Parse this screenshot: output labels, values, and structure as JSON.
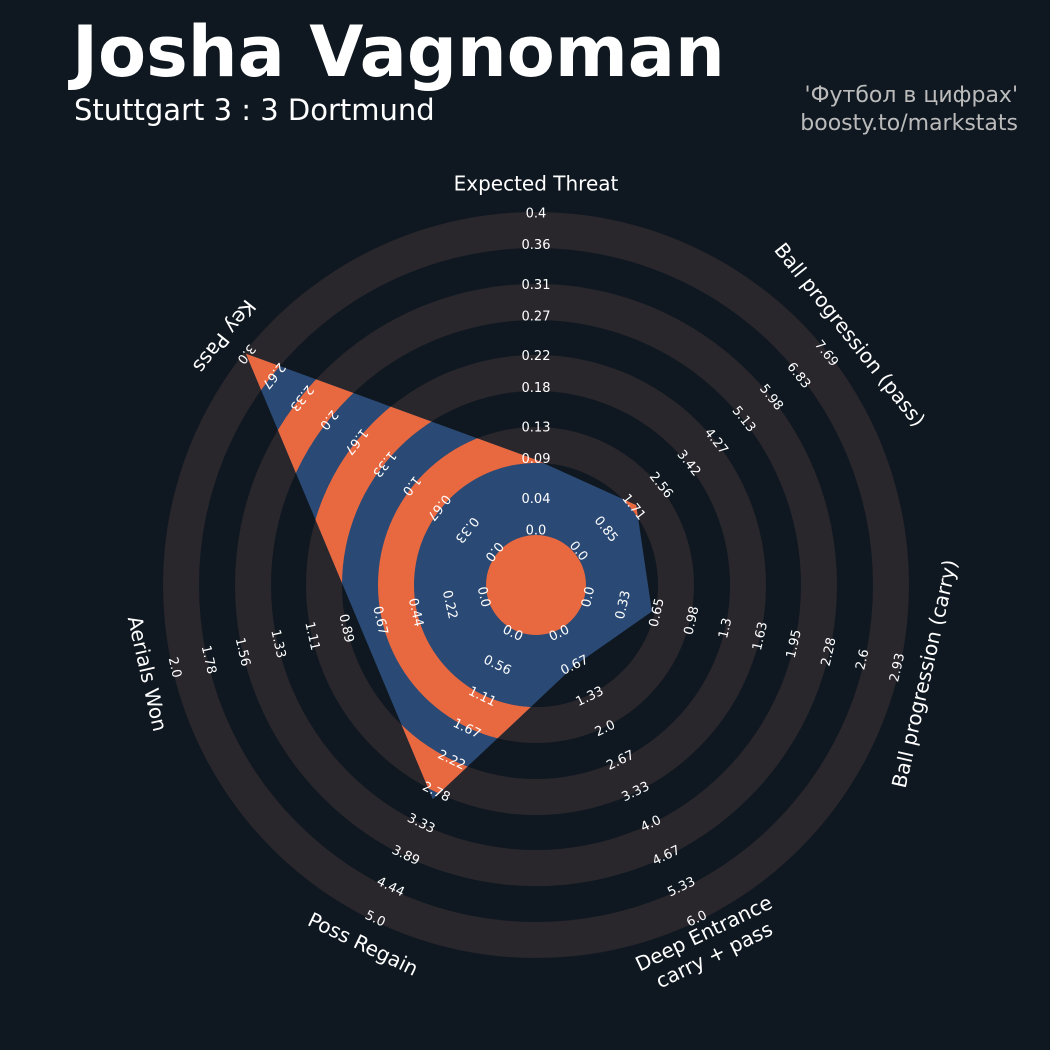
{
  "chart_data": {
    "type": "radar",
    "title": "Josha Vagnoman",
    "subtitle": "Stuttgart 3 : 3 Dortmund",
    "credits": [
      "'Футбол в цифрах'",
      "boosty.to/markstats"
    ],
    "params": [
      [
        "Expected Threat"
      ],
      [
        "Ball progression (pass)"
      ],
      [
        "Ball progression (carry)"
      ],
      [
        "Deep Entrance",
        "carry + pass"
      ],
      [
        "Poss Regain"
      ],
      [
        "Aerials Won"
      ],
      [
        "Key Pass"
      ]
    ],
    "ranges": [
      [
        0,
        0.4
      ],
      [
        0,
        7.69
      ],
      [
        0,
        2.93
      ],
      [
        0,
        6
      ],
      [
        0,
        5
      ],
      [
        0,
        2
      ],
      [
        0,
        3
      ]
    ],
    "rticks": [
      [
        {
          "value": 0,
          "label": "0.0"
        },
        0.04,
        0.09,
        0.13,
        0.18,
        0.22,
        0.27,
        0.31,
        0.36,
        0.4
      ],
      [
        {
          "value": 0,
          "label": "0.0"
        },
        0.85,
        1.71,
        2.56,
        3.42,
        4.27,
        5.13,
        5.98,
        6.83,
        7.69
      ],
      [
        {
          "value": 0,
          "label": "0.0"
        },
        0.33,
        0.65,
        0.98,
        1.3,
        1.63,
        1.95,
        2.28,
        2.6,
        2.93
      ],
      [
        {
          "value": 0,
          "label": "0.0"
        },
        0.67,
        1.33,
        {
          "value": 2,
          "label": "2.0"
        },
        2.67,
        3.33,
        {
          "value": 4,
          "label": "4.0"
        },
        4.67,
        5.33,
        {
          "value": 6,
          "label": "6.0"
        }
      ],
      [
        {
          "value": 0,
          "label": "0.0"
        },
        0.56,
        1.11,
        1.67,
        2.22,
        2.78,
        3.33,
        3.89,
        4.44,
        {
          "value": 5,
          "label": "5.0"
        }
      ],
      [
        {
          "value": 0,
          "label": "0.0"
        },
        0.22,
        0.44,
        0.67,
        0.89,
        1.11,
        1.33,
        1.56,
        1.78,
        {
          "value": 2,
          "label": "2.0"
        }
      ],
      [
        {
          "value": 0,
          "label": "0.0"
        },
        0.33,
        0.67,
        {
          "value": 1,
          "label": "1.0"
        },
        1.33,
        1.67,
        {
          "value": 2,
          "label": "2.0"
        },
        2.33,
        2.67,
        {
          "value": 3,
          "label": "3.0"
        }
      ]
    ],
    "values": [
      0.09,
      1.8,
      0.6,
      0.67,
      2.9,
      0.8,
      3.0
    ],
    "color": "#2a4a75",
    "ring_color": "#e8683f",
    "background_ring_color": "#29262c"
  }
}
